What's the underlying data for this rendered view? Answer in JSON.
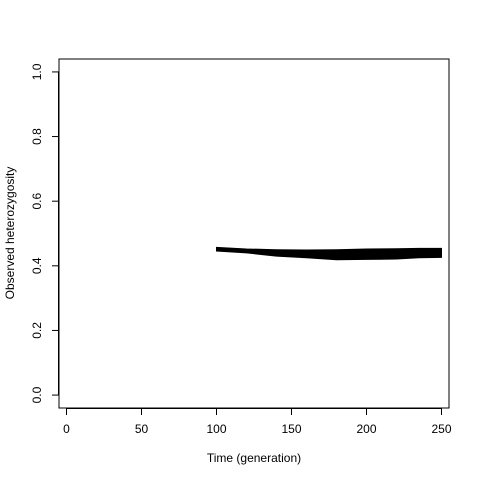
{
  "chart_data": {
    "type": "area",
    "title": "",
    "xlabel": "Time (generation)",
    "ylabel": "Observed heterozygosity",
    "xlim": [
      -5,
      255
    ],
    "ylim": [
      -0.04,
      1.04
    ],
    "x_ticks": [
      0,
      50,
      100,
      150,
      200,
      250
    ],
    "y_ticks": [
      0.0,
      0.2,
      0.4,
      0.6,
      0.8,
      1.0
    ],
    "x_tick_labels": [
      "0",
      "50",
      "100",
      "150",
      "200",
      "250"
    ],
    "y_tick_labels": [
      "0.0",
      "0.2",
      "0.4",
      "0.6",
      "0.8",
      "1.0"
    ],
    "grid": false,
    "legend": "none",
    "series": [
      {
        "color": "#000000",
        "x": [
          100,
          120,
          140,
          160,
          180,
          200,
          220,
          235,
          250
        ],
        "upper": [
          0.457,
          0.452,
          0.45,
          0.449,
          0.45,
          0.452,
          0.453,
          0.454,
          0.454
        ],
        "lower": [
          0.446,
          0.44,
          0.43,
          0.425,
          0.419,
          0.42,
          0.421,
          0.425,
          0.426
        ]
      }
    ]
  }
}
